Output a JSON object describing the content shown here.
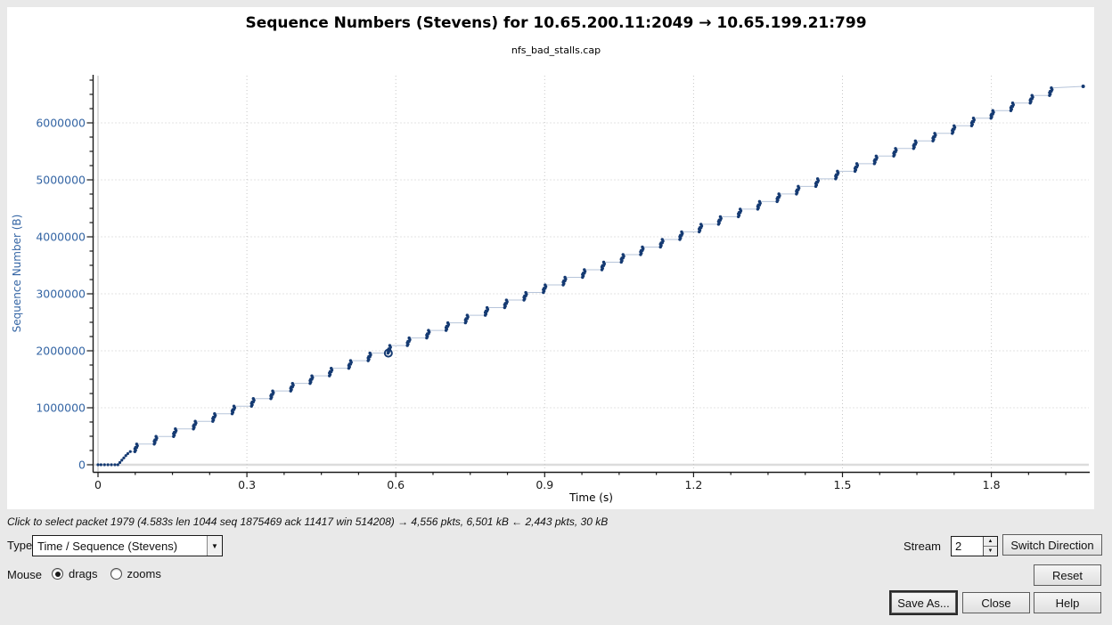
{
  "window": {
    "bg": "#e9e9e9",
    "plot_bg": "#ffffff"
  },
  "header": {
    "title": "Sequence Numbers (Stevens) for 10.65.200.11:2049 → 10.65.199.21:799",
    "subtitle": "nfs_bad_stalls.cap"
  },
  "chart_data": {
    "type": "scatter",
    "title": "Sequence Numbers (Stevens) for 10.65.200.11:2049 → 10.65.199.21:799",
    "subtitle": "nfs_bad_stalls.cap",
    "xlabel": "Time (s)",
    "ylabel": "Sequence Number (B)",
    "xlim": [
      0,
      2.0
    ],
    "ylim": [
      0,
      6800000
    ],
    "grid": "dotted",
    "legend": "none",
    "x_ticks_major": [
      0,
      0.3,
      0.6,
      0.9,
      1.2,
      1.5,
      1.8
    ],
    "x_minor_step": 0.075,
    "y_ticks_major": [
      0,
      1000000,
      2000000,
      3000000,
      4000000,
      5000000,
      6000000
    ],
    "y_minor_step": 250000,
    "leading_dots_t": [
      0.0,
      0.006,
      0.013,
      0.02,
      0.027,
      0.034
    ],
    "ramp": [
      [
        0.04,
        0
      ],
      [
        0.044,
        40000
      ],
      [
        0.048,
        80000
      ],
      [
        0.052,
        120000
      ],
      [
        0.056,
        160000
      ],
      [
        0.06,
        195000
      ],
      [
        0.065,
        230000
      ]
    ],
    "burst_t": [
      0.075,
      0.114,
      0.153,
      0.193,
      0.232,
      0.271,
      0.31,
      0.349,
      0.389,
      0.428,
      0.467,
      0.506,
      0.545,
      0.585,
      0.624,
      0.663,
      0.702,
      0.741,
      0.781,
      0.82,
      0.859,
      0.898,
      0.938,
      0.977,
      1.016,
      1.055,
      1.094,
      1.134,
      1.173,
      1.212,
      1.251,
      1.291,
      1.33,
      1.369,
      1.408,
      1.447,
      1.487,
      1.526,
      1.565,
      1.604,
      1.644,
      1.683,
      1.722,
      1.761,
      1.8,
      1.84,
      1.879,
      1.918
    ],
    "burst_seq_bounds": [
      230000,
      363000,
      496000,
      629000,
      762000,
      895000,
      1028000,
      1161000,
      1294000,
      1427000,
      1560000,
      1693000,
      1826000,
      1959000,
      2092000,
      2225000,
      2358000,
      2491000,
      2624000,
      2757000,
      2890000,
      3023000,
      3156000,
      3289000,
      3422000,
      3555000,
      3688000,
      3821000,
      3954000,
      4087000,
      4220000,
      4353000,
      4486000,
      4619000,
      4752000,
      4885000,
      5018000,
      5151000,
      5284000,
      5417000,
      5550000,
      5683000,
      5816000,
      5949000,
      6082000,
      6215000,
      6348000,
      6481000,
      6614000
    ],
    "final_dot": {
      "t": 1.985,
      "seq": 6640000
    },
    "selected_point": {
      "t": 0.585,
      "seq": 1959000
    },
    "colors": {
      "dot": "#153a72",
      "connector": "#b7c5da",
      "y_text": "#3465a4",
      "x_text": "#1a1a1a",
      "grid": "#c6c6c6",
      "zero_line": "#dcdcdc",
      "axis": "#1a1a1a"
    }
  },
  "status_bar": {
    "text": "Click to select packet 1979 (4.583s len 1044 seq 1875469 ack 11417 win 514208) → 4,556 pkts, 6,501 kB ← 2,443 pkts, 30 kB"
  },
  "controls": {
    "type_label": "Type",
    "type_value": "Time / Sequence (Stevens)",
    "combo_arrow_icon": "▼",
    "mouse_label": "Mouse",
    "mouse_options": [
      {
        "label": "drags",
        "selected": true
      },
      {
        "label": "zooms",
        "selected": false
      }
    ],
    "stream_label": "Stream",
    "stream_value": "2",
    "spin_up_icon": "▲",
    "spin_down_icon": "▼",
    "switch_direction": "Switch Direction",
    "reset": "Reset",
    "save_as": "Save As...",
    "close": "Close",
    "help": "Help"
  }
}
